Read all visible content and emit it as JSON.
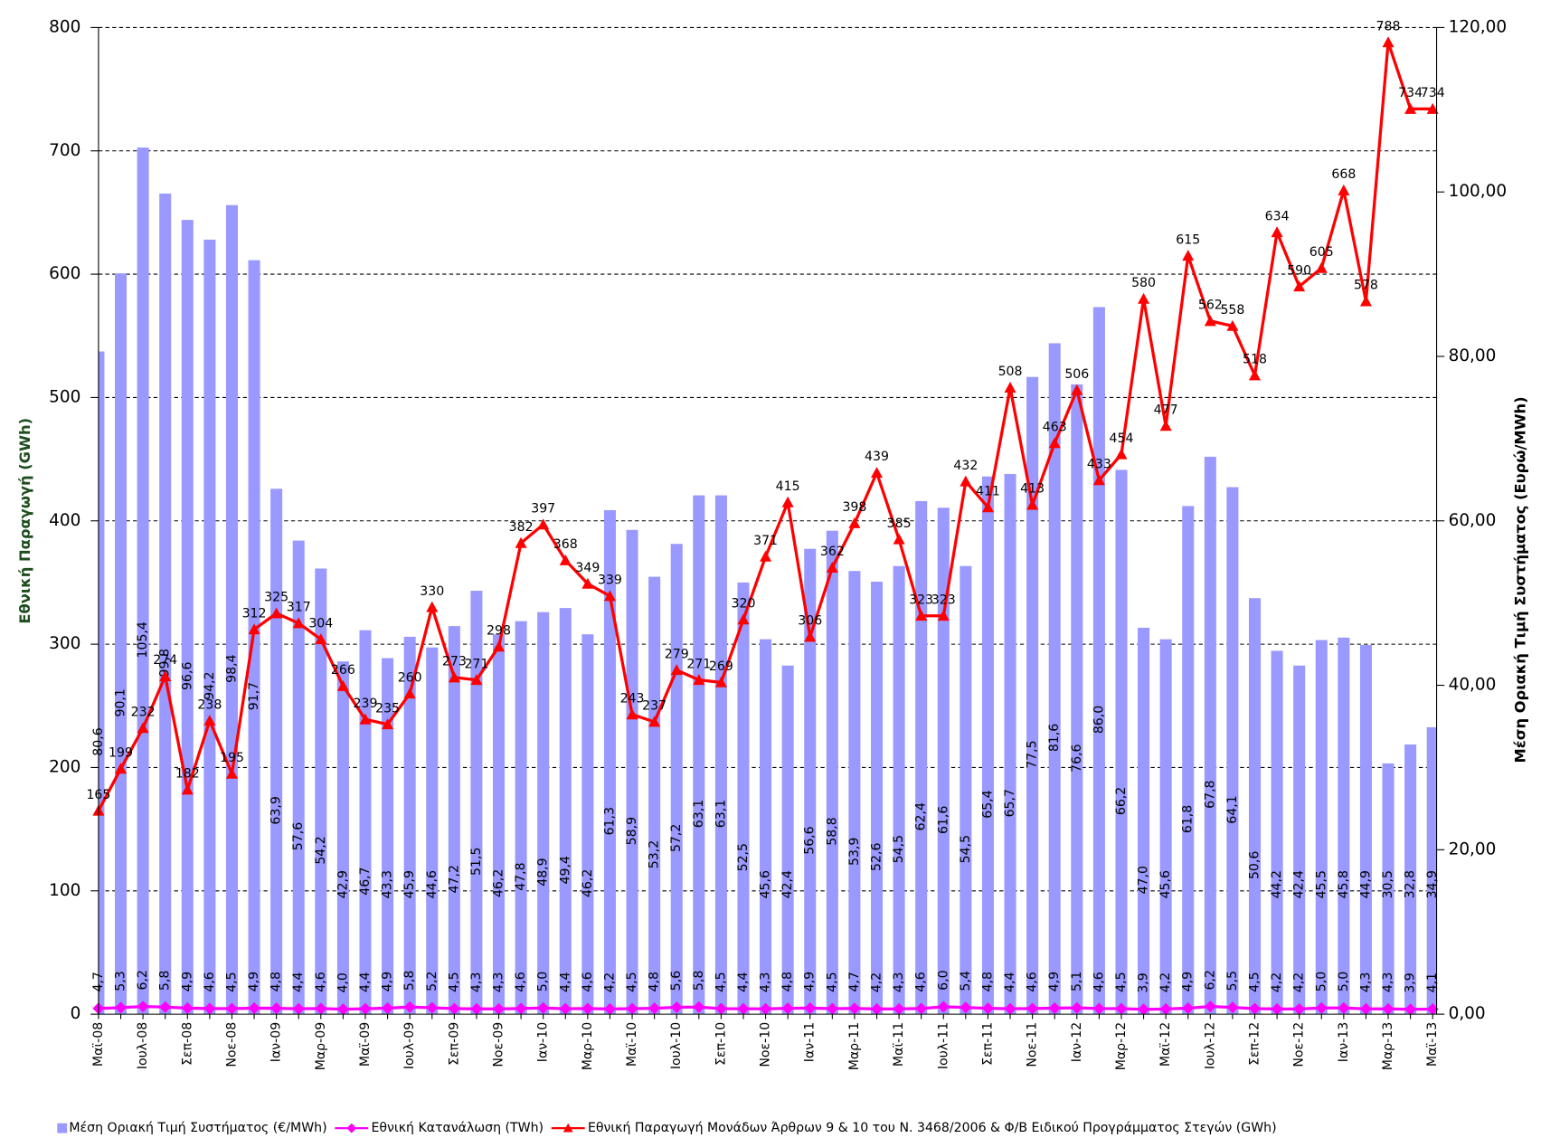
{
  "chart_data": {
    "type": "combo",
    "y_label": "Εθνική Παραγωγή (GWh)",
    "y2_label": "Μέση Οριακή Τιμή Συστήματος (Ευρώ/MWh)",
    "categories": [
      "Μαϊ-08",
      null,
      "Ιουλ-08",
      null,
      "Σεπ-08",
      null,
      "Νοε-08",
      null,
      "Ιαν-09",
      null,
      "Μαρ-09",
      null,
      "Μαϊ-09",
      null,
      "Ιουλ-09",
      null,
      "Σεπ-09",
      null,
      "Νοε-09",
      null,
      "Ιαν-10",
      null,
      "Μαρ-10",
      null,
      "Μαϊ-10",
      null,
      "Ιουλ-10",
      null,
      "Σεπ-10",
      null,
      "Νοε-10",
      null,
      "Ιαν-11",
      null,
      "Μαρ-11",
      null,
      "Μαϊ-11",
      null,
      "Ιουλ-11",
      null,
      "Σεπ-11",
      null,
      "Νοε-11",
      null,
      "Ιαν-12",
      null,
      "Μαρ-12",
      null,
      "Μαϊ-12",
      null,
      "Ιουλ-12",
      null,
      "Σεπ-12",
      null,
      "Νοε-12",
      null,
      "Ιαν-13",
      null,
      "Μαρ-13",
      null,
      "Μαϊ-13"
    ],
    "ylim": [
      0,
      800
    ],
    "yticks": [
      0,
      100,
      200,
      300,
      400,
      500,
      600,
      700,
      800
    ],
    "y2lim": [
      0,
      120
    ],
    "y2ticks": [
      {
        "value": 0,
        "label": "0,00"
      },
      {
        "value": 20,
        "label": "20,00"
      },
      {
        "value": 40,
        "label": "40,00"
      },
      {
        "value": 60,
        "label": "60,00"
      },
      {
        "value": 80,
        "label": "80,00"
      },
      {
        "value": 100,
        "label": "100,00"
      },
      {
        "value": 120,
        "label": "120,00"
      }
    ],
    "grid": true,
    "series": [
      {
        "name": "Μέση Οριακή Τιμή Συστήματος (€/MWh)",
        "type": "bar",
        "axis": "y2",
        "color": "#9999ff",
        "values": [
          80.6,
          90.1,
          105.4,
          99.8,
          96.6,
          94.2,
          98.4,
          91.7,
          63.9,
          57.6,
          54.2,
          42.9,
          46.7,
          43.3,
          45.9,
          44.6,
          47.2,
          51.5,
          46.2,
          47.8,
          48.9,
          49.4,
          46.2,
          61.3,
          58.9,
          53.2,
          57.2,
          63.1,
          63.1,
          52.5,
          45.6,
          42.4,
          56.6,
          58.8,
          53.9,
          52.6,
          54.5,
          62.4,
          61.6,
          54.5,
          65.4,
          65.7,
          77.5,
          81.6,
          76.6,
          86.0,
          66.2,
          47.0,
          45.6,
          61.8,
          67.8,
          64.1,
          50.6,
          44.2,
          42.4,
          45.5,
          45.8,
          44.9,
          30.5,
          32.8,
          34.9
        ],
        "value_labels": [
          "80,6",
          "90,1",
          "105,4",
          "99,8",
          "96,6",
          "94,2",
          "98,4",
          "91,7",
          "63,9",
          "57,6",
          "54,2",
          "42,9",
          "46,7",
          "43,3",
          "45,9",
          "44,6",
          "47,2",
          "51,5",
          "46,2",
          "47,8",
          "48,9",
          "49,4",
          "46,2",
          "61,3",
          "58,9",
          "53,2",
          "57,2",
          "63,1",
          "63,1",
          "52,5",
          "45,6",
          "42,4",
          "56,6",
          "58,8",
          "53,9",
          "52,6",
          "54,5",
          "62,4",
          "61,6",
          "54,5",
          "65,4",
          "65,7",
          "77,5",
          "81,6",
          "76,6",
          "86,0",
          "66,2",
          "47,0",
          "45,6",
          "61,8",
          "67,8",
          "64,1",
          "50,6",
          "44,2",
          "42,4",
          "45,5",
          "45,8",
          "44,9",
          "30,5",
          "32,8",
          "34,9"
        ]
      },
      {
        "name": "Εθνική Κατανάλωση (TWh)",
        "type": "line",
        "marker": "diamond",
        "color": "#ff00ff",
        "values": [
          4.7,
          5.3,
          6.2,
          5.8,
          4.9,
          4.6,
          4.5,
          4.9,
          4.8,
          4.4,
          4.6,
          4.0,
          4.4,
          4.9,
          5.8,
          5.2,
          4.5,
          4.3,
          4.3,
          4.6,
          5.0,
          4.4,
          4.6,
          4.2,
          4.5,
          4.8,
          5.6,
          5.8,
          4.5,
          4.4,
          4.3,
          4.8,
          4.9,
          4.5,
          4.7,
          4.2,
          4.3,
          4.6,
          6.0,
          5.4,
          4.8,
          4.4,
          4.6,
          4.9,
          5.1,
          4.6,
          4.5,
          3.9,
          4.2,
          4.9,
          6.2,
          5.5,
          4.5,
          4.2,
          4.2,
          5.0,
          5.0,
          4.3,
          4.3,
          3.9,
          4.1
        ],
        "value_labels": [
          "4,7",
          "5,3",
          "6,2",
          "5,8",
          "4,9",
          "4,6",
          "4,5",
          "4,9",
          "4,8",
          "4,4",
          "4,6",
          "4,0",
          "4,4",
          "4,9",
          "5,8",
          "5,2",
          "4,5",
          "4,3",
          "4,3",
          "4,6",
          "5,0",
          "4,4",
          "4,6",
          "4,2",
          "4,5",
          "4,8",
          "5,6",
          "5,8",
          "4,5",
          "4,4",
          "4,3",
          "4,8",
          "4,9",
          "4,5",
          "4,7",
          "4,2",
          "4,3",
          "4,6",
          "6,0",
          "5,4",
          "4,8",
          "4,4",
          "4,6",
          "4,9",
          "5,1",
          "4,6",
          "4,5",
          "3,9",
          "4,2",
          "4,9",
          "6,2",
          "5,5",
          "4,5",
          "4,2",
          "4,2",
          "5,0",
          "5,0",
          "4,3",
          "4,3",
          "3,9",
          "4,1"
        ]
      },
      {
        "name": "Εθνική Παραγωγή Μονάδων Άρθρων 9 & 10 του Ν. 3468/2006 & Φ/Β Ειδικού Προγράμματος Στεγών (GWh)",
        "type": "line",
        "marker": "triangle",
        "color": "#ff0000",
        "values": [
          165,
          199,
          232,
          274,
          182,
          238,
          195,
          312,
          325,
          317,
          304,
          266,
          239,
          235,
          260,
          330,
          273,
          271,
          298,
          382,
          397,
          368,
          349,
          339,
          243,
          237,
          279,
          271,
          269,
          320,
          371,
          415,
          306,
          362,
          398,
          439,
          385,
          323,
          323,
          432,
          411,
          508,
          413,
          463,
          506,
          433,
          454,
          580,
          477,
          615,
          562,
          558,
          518,
          634,
          590,
          605,
          668,
          578,
          788,
          734,
          734
        ]
      }
    ]
  }
}
